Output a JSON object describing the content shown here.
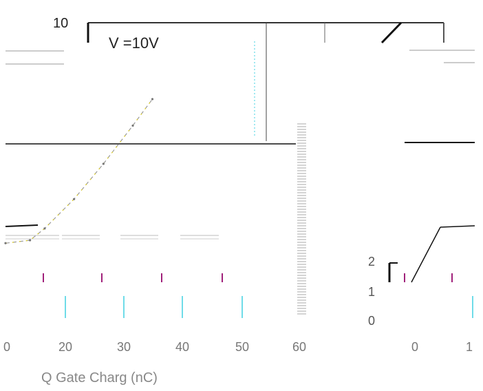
{
  "chart_data": {
    "type": "line",
    "title": "",
    "ylim_label_top": "10",
    "annotation": "V  =10V",
    "xlabel": "Q  Gate Charg (nC)",
    "x_ticks": [
      "0",
      "20",
      "30",
      "40",
      "50",
      "60"
    ],
    "right_x_ticks": [
      "0",
      "1"
    ],
    "right_y_ticks": [
      "2",
      "1",
      "0"
    ],
    "xlim": [
      0,
      60
    ],
    "series": [
      {
        "x": [
          0,
          5,
          8,
          14,
          20,
          26,
          30
        ],
        "values": [
          2.5,
          2.6,
          3.0,
          4.0,
          5.2,
          6.5,
          7.4
        ]
      }
    ],
    "colors": {
      "ink": "#1a1a1a",
      "gray": "#9a9a9a",
      "yellow": "#e8d400",
      "cyan": "#3fd0e0",
      "magenta": "#a0207a"
    }
  }
}
